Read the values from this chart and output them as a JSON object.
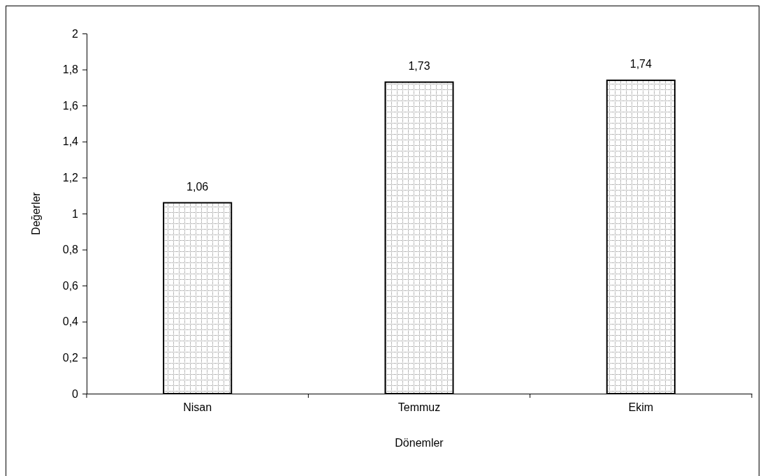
{
  "chart_data": {
    "type": "bar",
    "xlabel": "Dönemler",
    "ylabel": "Değerler",
    "categories": [
      "Nisan",
      "Temmuz",
      "Ekim"
    ],
    "values": [
      1.06,
      1.73,
      1.74
    ],
    "value_labels": [
      "1,06",
      "1,73",
      "1,74"
    ],
    "color": "#000000",
    "ylim": [
      0,
      2
    ],
    "yticks": [
      0,
      {
        "value": 0.2,
        "label": "0,2"
      },
      {
        "value": 0.4,
        "label": "0,4"
      },
      {
        "value": 0.6,
        "label": "0,6"
      },
      {
        "value": 0.8,
        "label": "0,8"
      },
      1,
      {
        "value": 1.2,
        "label": "1,2"
      },
      {
        "value": 1.4,
        "label": "1,4"
      },
      {
        "value": 1.6,
        "label": "1,6"
      },
      {
        "value": 1.8,
        "label": "1,8"
      },
      2
    ],
    "grid": false
  }
}
